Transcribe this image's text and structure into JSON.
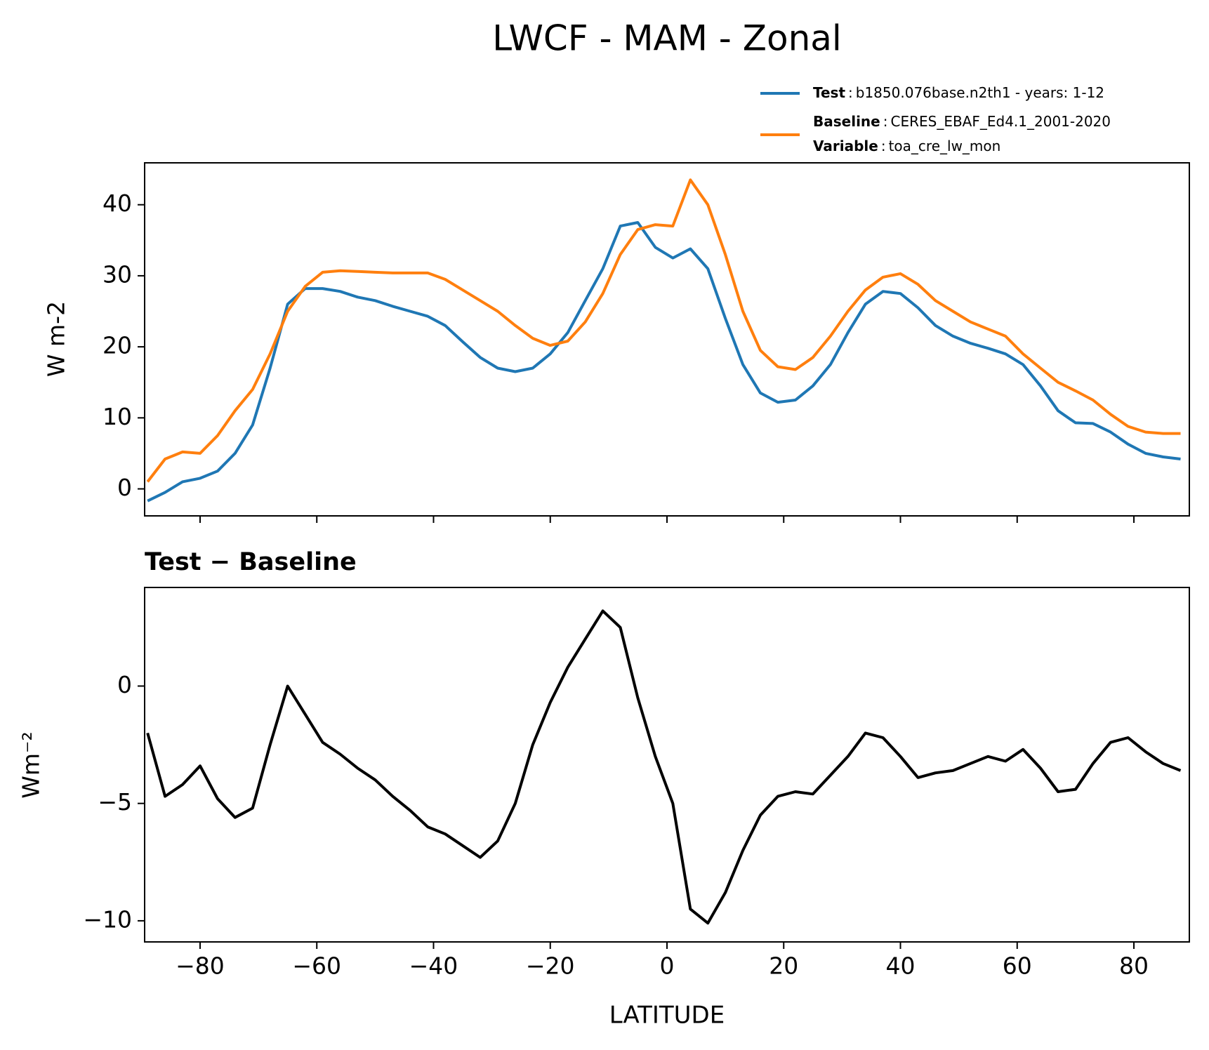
{
  "chart_data": [
    {
      "type": "line",
      "title": "LWCF - MAM - Zonal",
      "ylabel": "W m-2",
      "x": [
        -89,
        -86,
        -83,
        -80,
        -77,
        -74,
        -71,
        -68,
        -65,
        -62,
        -59,
        -56,
        -53,
        -50,
        -47,
        -44,
        -41,
        -38,
        -35,
        -32,
        -29,
        -26,
        -23,
        -20,
        -17,
        -14,
        -11,
        -8,
        -5,
        -2,
        1,
        4,
        7,
        10,
        13,
        16,
        19,
        22,
        25,
        28,
        31,
        34,
        37,
        40,
        43,
        46,
        49,
        52,
        55,
        58,
        61,
        64,
        67,
        70,
        73,
        76,
        79,
        82,
        85,
        88
      ],
      "series": [
        {
          "name": "Test",
          "description": "b1850.076base.n2th1 - years: 1-12",
          "color": "#1f77b4",
          "values": [
            -1.7,
            -0.5,
            1.0,
            1.5,
            2.5,
            5,
            9,
            17,
            26,
            28.2,
            28.2,
            27.8,
            27,
            26.5,
            25.7,
            25,
            24.3,
            23,
            20.7,
            18.5,
            17,
            16.5,
            17,
            19,
            22,
            26.5,
            31,
            37,
            37.5,
            34,
            32.5,
            33.8,
            31,
            24,
            17.5,
            13.5,
            12.2,
            12.5,
            14.5,
            17.5,
            22,
            26,
            27.8,
            27.5,
            25.5,
            23,
            21.5,
            20.5,
            19.8,
            19,
            17.5,
            14.5,
            11,
            9.3,
            9.2,
            8,
            6.3,
            5,
            4.5,
            4.2
          ]
        },
        {
          "name": "Baseline",
          "description": "CERES_EBAF_Ed4.1_2001-2020",
          "color": "#ff7f0e",
          "values": [
            1,
            4.2,
            5.2,
            5,
            7.5,
            11,
            14,
            19,
            25,
            28.5,
            30.5,
            30.7,
            30.6,
            30.5,
            30.4,
            30.4,
            30.4,
            29.5,
            28,
            26.5,
            25,
            23,
            21.2,
            20.2,
            20.8,
            23.5,
            27.5,
            33,
            36.5,
            37.2,
            37,
            43.5,
            40,
            33,
            25,
            19.5,
            17.2,
            16.8,
            18.5,
            21.5,
            25,
            28,
            29.8,
            30.3,
            28.8,
            26.5,
            25,
            23.5,
            22.5,
            21.5,
            19,
            17,
            15,
            13.8,
            12.5,
            10.5,
            8.8,
            8,
            7.8,
            7.8
          ]
        }
      ],
      "legend_note": {
        "name": "Variable",
        "description": "toa_cre_lw_mon"
      },
      "xlim": [
        -89.5,
        89.5
      ],
      "ylim": [
        -3.8,
        45.9
      ],
      "yticks": [
        0,
        10,
        20,
        30,
        40
      ]
    },
    {
      "type": "line",
      "subtitle": "Test − Baseline",
      "ylabel": "Wm⁻²",
      "xlabel": "LATITUDE",
      "x": [
        -89,
        -86,
        -83,
        -80,
        -77,
        -74,
        -71,
        -68,
        -65,
        -62,
        -59,
        -56,
        -53,
        -50,
        -47,
        -44,
        -41,
        -38,
        -35,
        -32,
        -29,
        -26,
        -23,
        -20,
        -17,
        -14,
        -11,
        -8,
        -5,
        -2,
        1,
        4,
        7,
        10,
        13,
        16,
        19,
        22,
        25,
        28,
        31,
        34,
        37,
        40,
        43,
        46,
        49,
        52,
        55,
        58,
        61,
        64,
        67,
        70,
        73,
        76,
        79,
        82,
        85,
        88
      ],
      "series": [
        {
          "name": "Test − Baseline",
          "color": "#000000",
          "values": [
            -2,
            -4.7,
            -4.2,
            -3.4,
            -4.8,
            -5.6,
            -5.2,
            -2.5,
            0,
            -1.2,
            -2.4,
            -2.9,
            -3.5,
            -4,
            -4.7,
            -5.3,
            -6,
            -6.3,
            -6.8,
            -7.3,
            -6.6,
            -5,
            -2.5,
            -0.7,
            0.8,
            2,
            3.2,
            2.5,
            -0.5,
            -3,
            -5,
            -9.5,
            -10.1,
            -8.8,
            -7,
            -5.5,
            -4.7,
            -4.5,
            -4.6,
            -3.8,
            -3,
            -2,
            -2.2,
            -3,
            -3.9,
            -3.7,
            -3.6,
            -3.3,
            -3.0,
            -3.2,
            -2.7,
            -3.5,
            -4.5,
            -4.4,
            -3.3,
            -2.4,
            -2.2,
            -2.8,
            -3.3,
            -3.6
          ]
        }
      ],
      "xlim": [
        -89.5,
        89.5
      ],
      "ylim": [
        -10.9,
        4.2
      ],
      "xticks": [
        {
          "value": -80,
          "label": "−80"
        },
        {
          "value": -60,
          "label": "−60"
        },
        {
          "value": -40,
          "label": "−40"
        },
        {
          "value": -20,
          "label": "−20"
        },
        0,
        20,
        40,
        60,
        80
      ],
      "yticks": [
        {
          "value": -10,
          "label": "−10"
        },
        {
          "value": -5,
          "label": "−5"
        },
        0
      ]
    }
  ]
}
